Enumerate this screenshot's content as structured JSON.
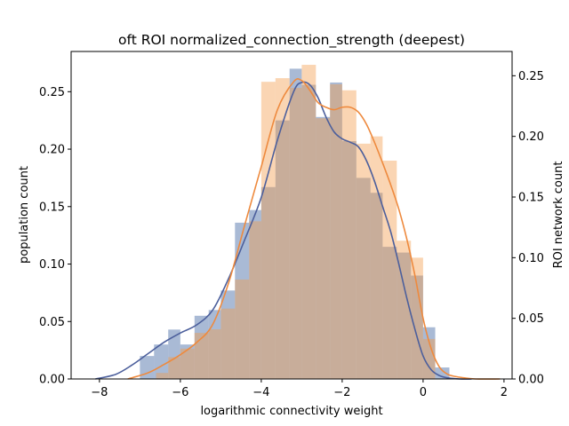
{
  "chart_data": {
    "type": "bar",
    "title": "oft ROI normalized_connection_strength (deepest)",
    "xlabel": "logarithmic connectivity weight",
    "ylabel": "population count",
    "ylabel_right": "ROI network count",
    "xlim": [
      -8.7,
      2.2
    ],
    "ylim_left": [
      0,
      0.285
    ],
    "ylim_right": [
      0,
      0.27
    ],
    "xticks": [
      -8,
      -6,
      -4,
      -2,
      0,
      2
    ],
    "xtick_labels": [
      "−8",
      "−6",
      "−4",
      "−2",
      "0",
      "2"
    ],
    "yticks_left": [
      0.0,
      0.05,
      0.1,
      0.15,
      0.2,
      0.25
    ],
    "ytick_labels_left": [
      "0.00",
      "0.05",
      "0.10",
      "0.15",
      "0.20",
      "0.25"
    ],
    "yticks_right": [
      0.0,
      0.05,
      0.1,
      0.15,
      0.2,
      0.25
    ],
    "ytick_labels_right": [
      "0.00",
      "0.05",
      "0.10",
      "0.15",
      "0.20",
      "0.25"
    ],
    "grid": false,
    "colors": {
      "blue_bar": "#4c6fa8",
      "blue_line": "#4c5f9c",
      "orange_bar": "#f39a4a",
      "orange_line": "#ee8a3e"
    },
    "series": [
      {
        "axis": "left",
        "kind": "histogram",
        "bins": [
          [
            -7.0,
            -6.65,
            0.02
          ],
          [
            -6.65,
            -6.3,
            0.03
          ],
          [
            -6.3,
            -6.0,
            0.043
          ],
          [
            -6.0,
            -5.65,
            0.03
          ],
          [
            -5.65,
            -5.3,
            0.055
          ],
          [
            -5.3,
            -5.0,
            0.06
          ],
          [
            -5.0,
            -4.65,
            0.077
          ],
          [
            -4.65,
            -4.3,
            0.136
          ],
          [
            -4.3,
            -4.0,
            0.147
          ],
          [
            -4.0,
            -3.65,
            0.167
          ],
          [
            -3.65,
            -3.3,
            0.225
          ],
          [
            -3.3,
            -3.0,
            0.27
          ],
          [
            -3.0,
            -2.65,
            0.256
          ],
          [
            -2.65,
            -2.3,
            0.228
          ],
          [
            -2.3,
            -2.0,
            0.258
          ],
          [
            -2.0,
            -1.65,
            0.207
          ],
          [
            -1.65,
            -1.3,
            0.175
          ],
          [
            -1.3,
            -1.0,
            0.162
          ],
          [
            -1.0,
            -0.65,
            0.115
          ],
          [
            -0.65,
            -0.3,
            0.11
          ],
          [
            -0.3,
            0.0,
            0.09
          ],
          [
            0.0,
            0.3,
            0.045
          ],
          [
            0.3,
            0.65,
            0.01
          ]
        ],
        "kde_x": [
          -8.1,
          -7.6,
          -7.2,
          -6.8,
          -6.4,
          -6.0,
          -5.6,
          -5.2,
          -4.8,
          -4.4,
          -4.0,
          -3.6,
          -3.2,
          -3.0,
          -2.8,
          -2.6,
          -2.4,
          -2.2,
          -2.0,
          -1.8,
          -1.6,
          -1.4,
          -1.2,
          -1.0,
          -0.8,
          -0.6,
          -0.4,
          -0.2,
          0.0,
          0.2,
          0.4,
          0.6,
          0.9,
          1.2
        ],
        "kde_y": [
          0.0,
          0.004,
          0.012,
          0.022,
          0.032,
          0.04,
          0.047,
          0.06,
          0.088,
          0.122,
          0.158,
          0.208,
          0.25,
          0.258,
          0.256,
          0.245,
          0.228,
          0.215,
          0.209,
          0.206,
          0.202,
          0.19,
          0.172,
          0.15,
          0.128,
          0.1,
          0.07,
          0.043,
          0.02,
          0.008,
          0.003,
          0.001,
          0.0,
          0.0
        ]
      },
      {
        "axis": "right",
        "kind": "histogram",
        "bins": [
          [
            -6.6,
            -6.3,
            0.005
          ],
          [
            -6.3,
            -6.0,
            0.018
          ],
          [
            -6.0,
            -5.65,
            0.025
          ],
          [
            -5.65,
            -5.3,
            0.038
          ],
          [
            -5.3,
            -5.0,
            0.041
          ],
          [
            -5.0,
            -4.65,
            0.058
          ],
          [
            -4.65,
            -4.3,
            0.082
          ],
          [
            -4.3,
            -4.0,
            0.13
          ],
          [
            -4.0,
            -3.65,
            0.245
          ],
          [
            -3.65,
            -3.3,
            0.248
          ],
          [
            -3.3,
            -3.0,
            0.24
          ],
          [
            -3.0,
            -2.65,
            0.259
          ],
          [
            -2.65,
            -2.3,
            0.215
          ],
          [
            -2.3,
            -2.0,
            0.243
          ],
          [
            -2.0,
            -1.65,
            0.238
          ],
          [
            -1.65,
            -1.3,
            0.194
          ],
          [
            -1.3,
            -1.0,
            0.2
          ],
          [
            -1.0,
            -0.65,
            0.18
          ],
          [
            -0.65,
            -0.3,
            0.114
          ],
          [
            -0.3,
            0.0,
            0.1
          ],
          [
            0.0,
            0.3,
            0.033
          ]
        ],
        "kde_x": [
          -7.3,
          -6.8,
          -6.4,
          -6.0,
          -5.6,
          -5.2,
          -4.8,
          -4.4,
          -4.0,
          -3.6,
          -3.2,
          -3.0,
          -2.8,
          -2.6,
          -2.4,
          -2.2,
          -2.0,
          -1.8,
          -1.6,
          -1.4,
          -1.2,
          -1.0,
          -0.8,
          -0.6,
          -0.4,
          -0.2,
          0.0,
          0.2,
          0.4,
          0.6,
          0.8,
          1.0,
          1.3,
          1.9
        ],
        "kde_y": [
          0.0,
          0.005,
          0.012,
          0.02,
          0.03,
          0.045,
          0.08,
          0.128,
          0.175,
          0.222,
          0.245,
          0.246,
          0.238,
          0.228,
          0.224,
          0.222,
          0.224,
          0.224,
          0.22,
          0.21,
          0.195,
          0.178,
          0.16,
          0.14,
          0.115,
          0.085,
          0.05,
          0.025,
          0.01,
          0.004,
          0.002,
          0.001,
          0.0,
          0.0
        ]
      }
    ]
  }
}
